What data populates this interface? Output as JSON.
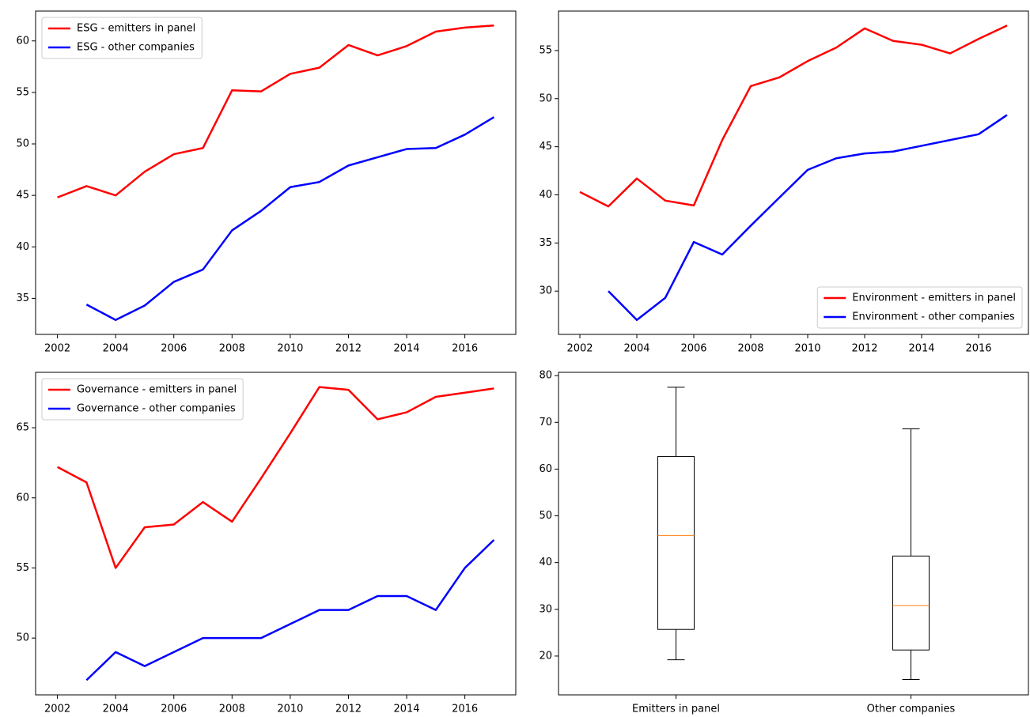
{
  "chart_data": [
    {
      "type": "line",
      "legend": "upper left",
      "x": [
        2002,
        2003,
        2004,
        2005,
        2006,
        2007,
        2008,
        2009,
        2010,
        2011,
        2012,
        2013,
        2014,
        2015,
        2016,
        2017
      ],
      "series": [
        {
          "name": "ESG - emitters in panel",
          "color": "#ff0000",
          "values": [
            44.8,
            45.9,
            45.0,
            47.3,
            49.0,
            49.6,
            55.2,
            55.1,
            56.8,
            57.4,
            59.6,
            58.6,
            59.5,
            60.9,
            61.3,
            61.5
          ]
        },
        {
          "name": "ESG - other companies",
          "color": "#0000ff",
          "values": [
            null,
            34.4,
            32.9,
            34.3,
            36.6,
            37.8,
            41.6,
            43.5,
            45.8,
            46.3,
            47.9,
            48.7,
            49.5,
            49.6,
            50.9,
            52.6
          ]
        }
      ],
      "xlim": [
        2001.25,
        2017.75
      ],
      "xticks": [
        2002,
        2004,
        2006,
        2008,
        2010,
        2012,
        2014,
        2016
      ],
      "ylim": [
        31.5,
        62.9
      ],
      "yticks": [
        35,
        40,
        45,
        50,
        55,
        60
      ]
    },
    {
      "type": "line",
      "legend": "lower right",
      "x": [
        2002,
        2003,
        2004,
        2005,
        2006,
        2007,
        2008,
        2009,
        2010,
        2011,
        2012,
        2013,
        2014,
        2015,
        2016,
        2017
      ],
      "series": [
        {
          "name": "Environment - emitters in panel",
          "color": "#ff0000",
          "values": [
            40.3,
            38.8,
            41.7,
            39.4,
            38.9,
            45.7,
            51.3,
            52.2,
            53.9,
            55.3,
            57.3,
            56.0,
            55.6,
            54.7,
            56.2,
            57.6
          ]
        },
        {
          "name": "Environment - other companies",
          "color": "#0000ff",
          "values": [
            null,
            30.0,
            27.0,
            29.3,
            35.1,
            33.8,
            36.8,
            39.7,
            42.6,
            43.8,
            44.3,
            44.5,
            45.1,
            45.7,
            46.3,
            48.3
          ]
        }
      ],
      "xlim": [
        2001.25,
        2017.75
      ],
      "xticks": [
        2002,
        2004,
        2006,
        2008,
        2010,
        2012,
        2014,
        2016
      ],
      "ylim": [
        25.5,
        59.1
      ],
      "yticks": [
        30,
        35,
        40,
        45,
        50,
        55
      ]
    },
    {
      "type": "line",
      "legend": "upper left",
      "x": [
        2002,
        2003,
        2004,
        2005,
        2006,
        2007,
        2008,
        2009,
        2010,
        2011,
        2012,
        2013,
        2014,
        2015,
        2016,
        2017
      ],
      "series": [
        {
          "name": "Governance - emitters in panel",
          "color": "#ff0000",
          "values": [
            62.2,
            61.1,
            55.0,
            57.9,
            58.1,
            59.7,
            58.3,
            61.4,
            64.6,
            67.9,
            67.7,
            65.6,
            66.1,
            67.2,
            67.5,
            67.8
          ]
        },
        {
          "name": "Governance - other companies",
          "color": "#0000ff",
          "values": [
            null,
            47,
            49,
            48,
            49,
            50,
            50,
            50,
            51,
            52,
            52,
            53,
            53,
            52,
            55,
            57
          ]
        }
      ],
      "xlim": [
        2001.25,
        2017.75
      ],
      "xticks": [
        2002,
        2004,
        2006,
        2008,
        2010,
        2012,
        2014,
        2016
      ],
      "ylim": [
        45.95,
        68.95
      ],
      "yticks": [
        50,
        55,
        60,
        65
      ]
    },
    {
      "type": "box",
      "median_color": "#ff7f0e",
      "boxes": [
        {
          "name": "Emitters in panel",
          "whislo": 19.2,
          "q1": 25.7,
          "med": 45.8,
          "q3": 62.7,
          "whishi": 77.5
        },
        {
          "name": "Other companies",
          "whislo": 15.0,
          "q1": 21.3,
          "med": 30.8,
          "q3": 41.4,
          "whishi": 68.6
        }
      ],
      "ylim": [
        11.7,
        80.7
      ],
      "yticks": [
        20,
        30,
        40,
        50,
        60,
        70,
        80
      ]
    }
  ]
}
